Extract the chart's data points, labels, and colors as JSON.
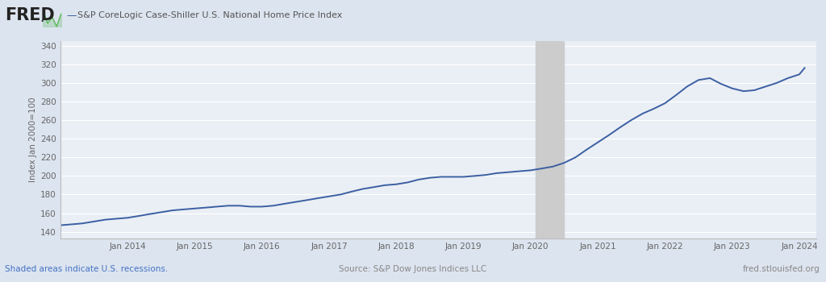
{
  "title": "S&P CoreLogic Case-Shiller U.S. National Home Price Index",
  "ylabel": "Index Jan 2000=100",
  "source_text": "Source: S&P Dow Jones Indices LLC",
  "fred_url": "fred.stlouisfed.org",
  "shaded_text": "Shaded areas indicate U.S. recessions.",
  "bg_color": "#dce4ef",
  "plot_bg_color": "#eaeff5",
  "line_color": "#3c5fa3",
  "recession_color": "#cccccc",
  "grid_color": "#ffffff",
  "yticks": [
    140,
    160,
    180,
    200,
    220,
    240,
    260,
    280,
    300,
    320,
    340
  ],
  "ylim": [
    133,
    345
  ],
  "recession_start": 2020.08,
  "recession_end": 2020.5,
  "data_x": [
    2013.0,
    2013.17,
    2013.33,
    2013.5,
    2013.67,
    2013.83,
    2014.0,
    2014.17,
    2014.33,
    2014.5,
    2014.67,
    2014.83,
    2015.0,
    2015.17,
    2015.33,
    2015.5,
    2015.67,
    2015.83,
    2016.0,
    2016.17,
    2016.33,
    2016.5,
    2016.67,
    2016.83,
    2017.0,
    2017.17,
    2017.33,
    2017.5,
    2017.67,
    2017.83,
    2018.0,
    2018.17,
    2018.33,
    2018.5,
    2018.67,
    2018.83,
    2019.0,
    2019.17,
    2019.33,
    2019.5,
    2019.67,
    2019.83,
    2020.0,
    2020.17,
    2020.33,
    2020.5,
    2020.67,
    2020.83,
    2021.0,
    2021.17,
    2021.33,
    2021.5,
    2021.67,
    2021.83,
    2022.0,
    2022.17,
    2022.33,
    2022.5,
    2022.67,
    2022.83,
    2023.0,
    2023.17,
    2023.33,
    2023.5,
    2023.67,
    2023.83,
    2024.0,
    2024.08
  ],
  "data_y": [
    147,
    148,
    149,
    151,
    153,
    154,
    155,
    157,
    159,
    161,
    163,
    164,
    165,
    166,
    167,
    168,
    168,
    167,
    167,
    168,
    170,
    172,
    174,
    176,
    178,
    180,
    183,
    186,
    188,
    190,
    191,
    193,
    196,
    198,
    199,
    199,
    199,
    200,
    201,
    203,
    204,
    205,
    206,
    208,
    210,
    214,
    220,
    228,
    236,
    244,
    252,
    260,
    267,
    272,
    278,
    287,
    296,
    303,
    305,
    299,
    294,
    291,
    292,
    296,
    300,
    305,
    309,
    316
  ],
  "xlim_left": 2013.0,
  "xlim_right": 2024.25,
  "xtick_positions": [
    2014.0,
    2015.0,
    2016.0,
    2017.0,
    2018.0,
    2019.0,
    2020.0,
    2021.0,
    2022.0,
    2023.0,
    2024.0
  ],
  "xtick_labels": [
    "Jan 2014",
    "Jan 2015",
    "Jan 2016",
    "Jan 2017",
    "Jan 2018",
    "Jan 2019",
    "Jan 2020",
    "Jan 2021",
    "Jan 2022",
    "Jan 2023",
    "Jan 2024"
  ]
}
